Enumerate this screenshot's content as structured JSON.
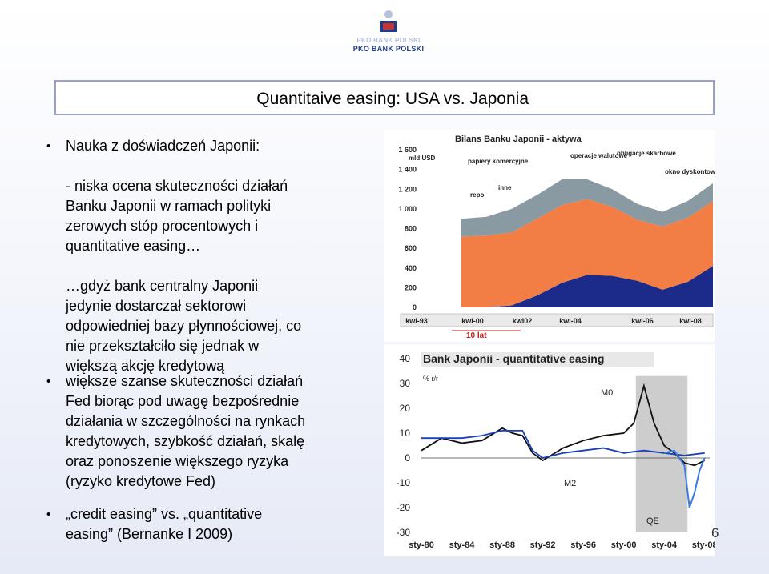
{
  "logo": {
    "line1": "PKO BANK POLSKI",
    "line2": "PKO BANK POLSKI"
  },
  "slide": {
    "title": "Quantitaive easing: USA vs. Japonia",
    "page_number": "6",
    "bullets": [
      {
        "lines": [
          "Nauka z doświadczeń Japonii:",
          "",
          "- niska ocena skuteczności działań",
          "Banku Japonii w ramach polityki",
          "zerowych stóp procentowych i",
          "quantitative easing…",
          "",
          "…gdyż bank centralny Japonii",
          "jedynie dostarczał sektorowi",
          "odpowiedniej bazy płynnościowej, co",
          "nie przekształciło się jednak w",
          "większą akcję kredytową"
        ]
      },
      {
        "lines": [
          "większe szanse skuteczności działań",
          "Fed biorąc pod uwagę bezpośrednie",
          "działania w szczególności na rynkach",
          "kredytowych, szybkość działań, skalę",
          "oraz ponoszenie większego ryzyka",
          "(ryzyko kredytowe Fed)"
        ]
      },
      {
        "lines": [
          "„credit easing” vs. „quantitative",
          "easing” (Bernanke I 2009)"
        ]
      }
    ]
  },
  "chart_data": [
    {
      "type": "area",
      "title": "Bilans Banku Japonii - aktywa",
      "ylabel": "mld USD",
      "ylim": [
        0,
        1600
      ],
      "y_ticks": [
        "0",
        "200",
        "400",
        "600",
        "800",
        "1 000",
        "1 200",
        "1 400",
        "1 600"
      ],
      "x_ticks": [
        "kwi-93",
        "kwi-00",
        "kwi02",
        "kwi-04",
        "kwi-06",
        "kwi-08"
      ],
      "annotations": [
        "operacje walutowe",
        "obligacje skarbowe",
        "papiery komercyjne",
        "inne",
        "repo",
        "okno dyskontowe"
      ],
      "period_label": "10 lat",
      "series": [
        {
          "name": "repo",
          "color": "#1c2a8a",
          "x": [
            0,
            10,
            20,
            30,
            40,
            50,
            60,
            70,
            80,
            90,
            100
          ],
          "values": [
            0,
            0,
            20,
            120,
            250,
            330,
            320,
            270,
            180,
            260,
            420
          ]
        },
        {
          "name": "obligacje skarbowe",
          "color": "#f27d45",
          "x": [
            0,
            10,
            20,
            30,
            40,
            50,
            60,
            70,
            80,
            90,
            100
          ],
          "values": [
            720,
            730,
            740,
            780,
            790,
            770,
            700,
            620,
            640,
            650,
            660
          ]
        },
        {
          "name": "inne",
          "color": "#8a9aa3",
          "x": [
            0,
            10,
            20,
            30,
            40,
            50,
            60,
            70,
            80,
            90,
            100
          ],
          "values": [
            180,
            190,
            240,
            240,
            260,
            200,
            180,
            160,
            150,
            170,
            180
          ]
        }
      ]
    },
    {
      "type": "line",
      "title": "Bank Japonii - quantitative easing",
      "ylabel": "% r/r",
      "ylim": [
        -30,
        40
      ],
      "y_ticks": [
        "-30",
        "-20",
        "-10",
        "0",
        "10",
        "20",
        "30",
        "40"
      ],
      "x_ticks": [
        "sty-80",
        "sty-84",
        "sty-88",
        "sty-92",
        "sty-96",
        "sty-00",
        "sty-04",
        "sty-08"
      ],
      "shaded_label": "QE",
      "series": [
        {
          "name": "M0",
          "color": "#111111",
          "x": [
            1980,
            1982,
            1984,
            1986,
            1988,
            1989,
            1990,
            1991,
            1992,
            1994,
            1996,
            1998,
            2000,
            2001,
            2002,
            2003,
            2004,
            2005,
            2006,
            2007,
            2008
          ],
          "values": [
            3,
            8,
            6,
            7,
            12,
            10,
            9,
            2,
            -1,
            4,
            7,
            9,
            10,
            14,
            29,
            14,
            5,
            2,
            -2,
            -3,
            -1
          ]
        },
        {
          "name": "M2",
          "color": "#1a3fb8",
          "x": [
            1980,
            1982,
            1984,
            1986,
            1988,
            1990,
            1991,
            1992,
            1994,
            1996,
            1998,
            2000,
            2002,
            2004,
            2006,
            2008
          ],
          "values": [
            8,
            8,
            8,
            9,
            11,
            11,
            3,
            0,
            2,
            3,
            4,
            2,
            3,
            2,
            1,
            2
          ]
        },
        {
          "name": "",
          "color": "#3a7ce0",
          "x": [
            2004,
            2005,
            2006,
            2006.5,
            2007,
            2007.5,
            2008
          ],
          "values": [
            2,
            3,
            -3,
            -20,
            -14,
            -5,
            0
          ]
        }
      ]
    }
  ]
}
